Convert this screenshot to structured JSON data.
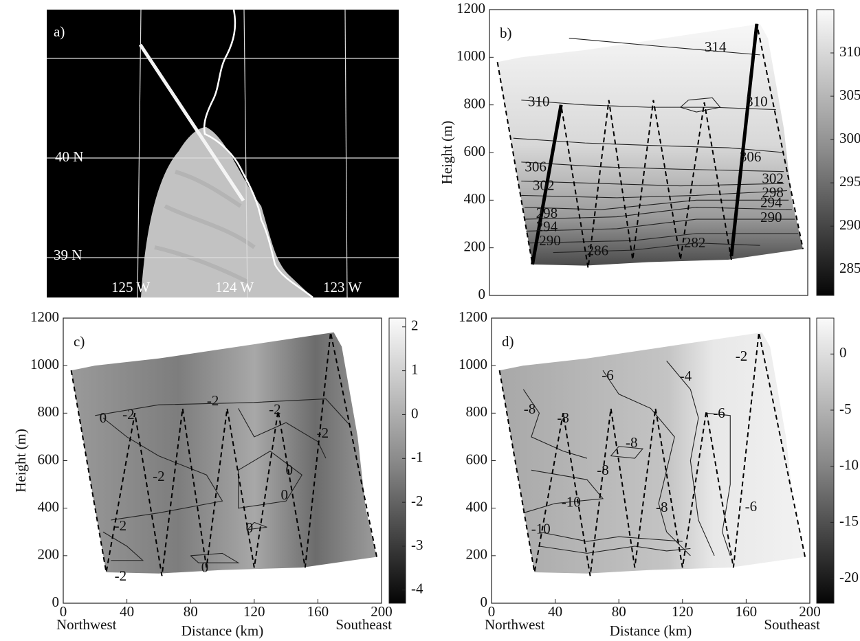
{
  "chart_data": [
    {
      "type": "image",
      "label": "a)",
      "labels": [
        "40 N",
        "39 N",
        "125 W",
        "124 W",
        "123 W"
      ]
    },
    {
      "type": "contour",
      "label": "b)",
      "ylabel": "Height (m)",
      "xlim": [
        0,
        200
      ],
      "ylim": [
        0,
        1200
      ],
      "yticks": [
        0,
        200,
        400,
        600,
        800,
        1000,
        1200
      ],
      "colorbar": {
        "lim": [
          282,
          315
        ],
        "ticks": [
          285,
          290,
          295,
          300,
          305,
          310
        ]
      },
      "contour_labels": [
        {
          "value": 314,
          "x": 142,
          "y": 1038
        },
        {
          "value": 310,
          "x": 31,
          "y": 808
        },
        {
          "value": 310,
          "x": 168,
          "y": 808
        },
        {
          "value": 306,
          "x": 29,
          "y": 534
        },
        {
          "value": 306,
          "x": 164,
          "y": 577
        },
        {
          "value": 302,
          "x": 34,
          "y": 456
        },
        {
          "value": 298,
          "x": 36,
          "y": 340
        },
        {
          "value": 294,
          "x": 36,
          "y": 283
        },
        {
          "value": 290,
          "x": 38,
          "y": 225
        },
        {
          "value": 286,
          "x": 68,
          "y": 182
        },
        {
          "value": 282,
          "x": 129,
          "y": 216
        },
        {
          "value": 302,
          "x": 178,
          "y": 485
        },
        {
          "value": 298,
          "x": 178,
          "y": 427
        },
        {
          "value": 294,
          "x": 177,
          "y": 384
        },
        {
          "value": 290,
          "x": 177,
          "y": 323
        }
      ]
    },
    {
      "type": "contour",
      "label": "c)",
      "ylabel": "Height (m)",
      "xlabel": "Distance (km)",
      "left_note": "Northwest",
      "right_note": "Southeast",
      "xlim": [
        0,
        200
      ],
      "ylim": [
        0,
        1200
      ],
      "xticks": [
        0,
        40,
        80,
        120,
        160,
        200
      ],
      "yticks": [
        0,
        200,
        400,
        600,
        800,
        1000,
        1200
      ],
      "colorbar": {
        "lim": [
          -4.3,
          2.2
        ],
        "ticks": [
          -4,
          -3,
          -2,
          -1,
          0,
          1,
          2
        ]
      },
      "contour_labels": [
        {
          "value": -2,
          "x": 94,
          "y": 847
        },
        {
          "value": -2,
          "x": 41,
          "y": 789
        },
        {
          "value": -2,
          "x": 133,
          "y": 810
        },
        {
          "value": 0,
          "x": 25,
          "y": 775
        },
        {
          "value": -2,
          "x": 60,
          "y": 529
        },
        {
          "value": 0,
          "x": 142,
          "y": 555
        },
        {
          "value": 0,
          "x": 139,
          "y": 451
        },
        {
          "value": -2,
          "x": 163,
          "y": 711
        },
        {
          "value": -2,
          "x": 36,
          "y": 321
        },
        {
          "value": -2,
          "x": 36,
          "y": 110
        },
        {
          "value": 0,
          "x": 89,
          "y": 145
        },
        {
          "value": 0,
          "x": 117,
          "y": 312
        }
      ]
    },
    {
      "type": "contour",
      "label": "d)",
      "xlabel": "Distance (km)",
      "left_note": "Northwest",
      "right_note": "Southeast",
      "xlim": [
        0,
        200
      ],
      "ylim": [
        0,
        1200
      ],
      "xticks": [
        0,
        40,
        80,
        120,
        160,
        200
      ],
      "yticks": [
        0,
        200,
        400,
        600,
        800,
        1000,
        1200
      ],
      "colorbar": {
        "lim": [
          -22.2,
          3.2
        ],
        "ticks": [
          -20,
          -15,
          -10,
          -5,
          0
        ]
      },
      "contour_labels": [
        {
          "value": -8,
          "x": 24,
          "y": 812
        },
        {
          "value": -8,
          "x": 45,
          "y": 775
        },
        {
          "value": -6,
          "x": 73,
          "y": 954
        },
        {
          "value": -4,
          "x": 122,
          "y": 951
        },
        {
          "value": -2,
          "x": 157,
          "y": 1034
        },
        {
          "value": -8,
          "x": 88,
          "y": 671
        },
        {
          "value": -8,
          "x": 70,
          "y": 555
        },
        {
          "value": -10,
          "x": 50,
          "y": 420
        },
        {
          "value": -8,
          "x": 107,
          "y": 399
        },
        {
          "value": -10,
          "x": 31,
          "y": 307
        },
        {
          "value": -6,
          "x": 143,
          "y": 795
        },
        {
          "value": -6,
          "x": 163,
          "y": 402
        }
      ]
    }
  ]
}
